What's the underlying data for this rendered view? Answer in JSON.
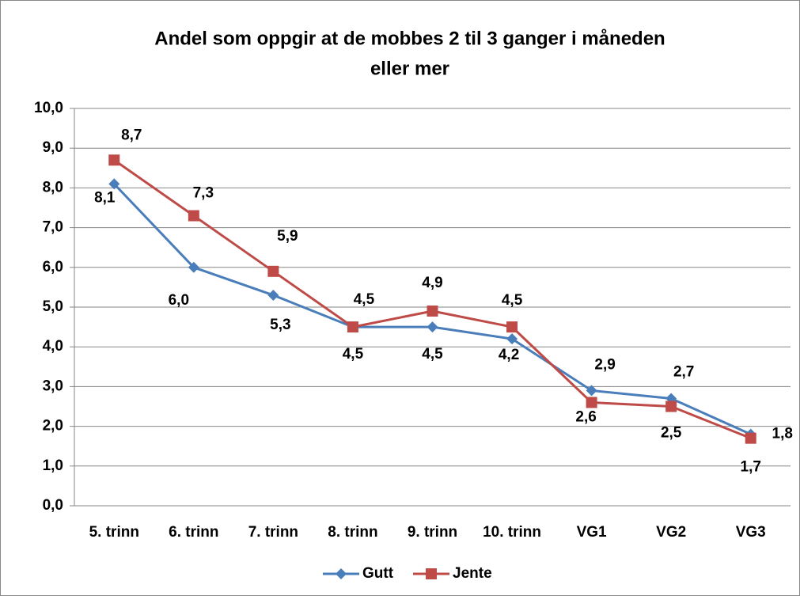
{
  "chart_data": {
    "type": "line",
    "title": [
      "Andel som oppgir at de mobbes 2 til 3 ganger i måneden",
      "eller mer"
    ],
    "categories": [
      "5. trinn",
      "6. trinn",
      "7. trinn",
      "8. trinn",
      "9. trinn",
      "10. trinn",
      "VG1",
      "VG2",
      "VG3"
    ],
    "series": [
      {
        "name": "Gutt",
        "color": "#4a7ebb",
        "marker": "diamond",
        "values": [
          8.1,
          6.0,
          5.3,
          4.5,
          4.5,
          4.2,
          2.9,
          2.7,
          1.8
        ],
        "value_labels": [
          "8,1",
          "6,0",
          "5,3",
          "4,5",
          "4,5",
          "4,2",
          "2,9",
          "2,7",
          "1,8"
        ]
      },
      {
        "name": "Jente",
        "color": "#be4b48",
        "marker": "square",
        "values": [
          8.7,
          7.3,
          5.9,
          4.5,
          4.9,
          4.5,
          2.6,
          2.5,
          1.7
        ],
        "value_labels": [
          "8,7",
          "7,3",
          "5,9",
          "4,5",
          "4,9",
          "4,5",
          "2,6",
          "2,5",
          "1,7"
        ]
      }
    ],
    "ylim": [
      0,
      10
    ],
    "yticks": [
      {
        "value": 0,
        "label": "0,0"
      },
      {
        "value": 1,
        "label": "1,0"
      },
      {
        "value": 2,
        "label": "2,0"
      },
      {
        "value": 3,
        "label": "3,0"
      },
      {
        "value": 4,
        "label": "4,0"
      },
      {
        "value": 5,
        "label": "5,0"
      },
      {
        "value": 6,
        "label": "6,0"
      },
      {
        "value": 7,
        "label": "7,0"
      },
      {
        "value": 8,
        "label": "8,0"
      },
      {
        "value": 9,
        "label": "9,0"
      },
      {
        "value": 10,
        "label": "10,0"
      }
    ],
    "grid": true,
    "legend": "bottom"
  }
}
